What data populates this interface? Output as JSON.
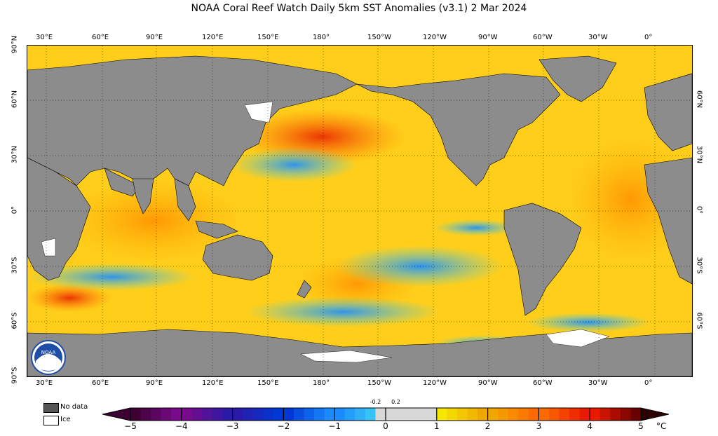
{
  "title": "NOAA Coral Reef Watch Daily 5km SST Anomalies  (v3.1)   2 Mar 2024",
  "lon_labels": [
    "30°E",
    "60°E",
    "90°E",
    "120°E",
    "150°E",
    "180°",
    "150°W",
    "120°W",
    "90°W",
    "60°W",
    "30°W",
    "0°"
  ],
  "lat_labels_left": [
    "90°N",
    "60°N",
    "30°N",
    "0°",
    "30°S",
    "60°S",
    "90°S"
  ],
  "lat_labels_right": [
    "60°N",
    "30°N",
    "0°",
    "30°S",
    "60°S"
  ],
  "legend": {
    "nodata": "No data",
    "ice": "Ice"
  },
  "colorbar": {
    "ticks": [
      "−5",
      "−4",
      "−3",
      "−2",
      "−1",
      "0",
      "1",
      "2",
      "3",
      "4",
      "5"
    ],
    "small_ticks": [
      "-0.2",
      "0.2"
    ],
    "unit": "°C",
    "colors": {
      "neg5": "#3d0033",
      "neg4": "#7a0a8c",
      "neg3": "#2b1aa8",
      "neg2": "#0038d6",
      "neg1": "#1a8cff",
      "neg0": "#3fd4f0",
      "zero": "#d8d8d8",
      "pos1": "#f7e600",
      "pos2": "#f0a800",
      "pos3": "#ff6a00",
      "pos4": "#e81a00",
      "pos5": "#6b0000"
    }
  },
  "colors": {
    "land": "#8c8c8c",
    "ocean_warm": "#ffd21a",
    "nodata": "#555555",
    "ice": "#ffffff"
  },
  "logo": {
    "text": "NOAA"
  }
}
